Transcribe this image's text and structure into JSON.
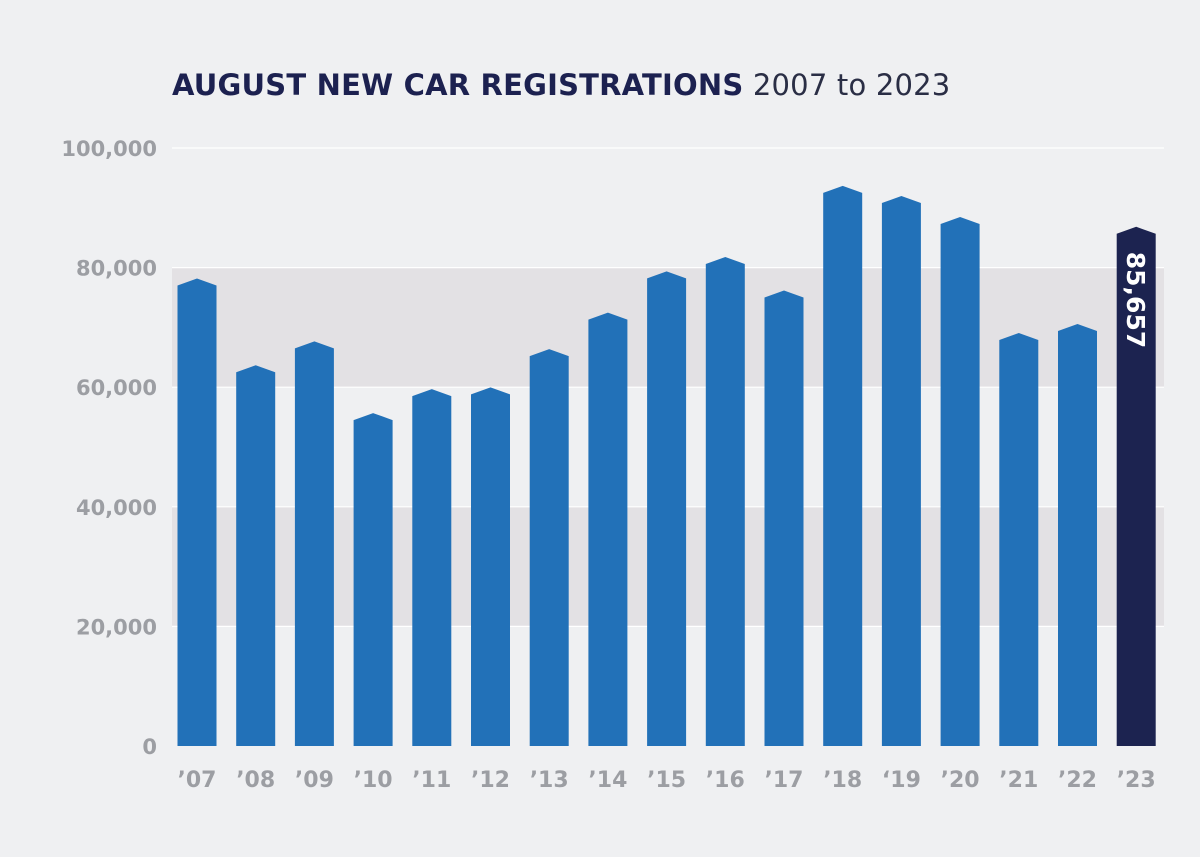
{
  "chart_data": {
    "type": "bar",
    "title": "AUGUST NEW CAR REGISTRATIONS",
    "subtitle": "2007 to 2023",
    "xlabel": "",
    "ylabel": "",
    "ylim": [
      0,
      100000
    ],
    "yticks": [
      0,
      20000,
      40000,
      60000,
      80000,
      100000
    ],
    "ytick_labels": [
      "0",
      "20,000",
      "40,000",
      "60,000",
      "80,000",
      "100,000"
    ],
    "categories": [
      "’07",
      "’08",
      "’09",
      "’10",
      "’11",
      "’12",
      "’13",
      "’14",
      "’15",
      "’16",
      "’17",
      "’18",
      "‘19",
      "’20",
      "’21",
      "’22",
      "’23"
    ],
    "values": [
      77000,
      62500,
      66500,
      54500,
      58500,
      58800,
      65200,
      71300,
      78200,
      80600,
      75000,
      92500,
      90800,
      87300,
      67900,
      69400,
      85657
    ],
    "highlight": {
      "index": 16,
      "label": "85,657",
      "color": "#1c2350"
    },
    "bar_color": "#2271b8",
    "grid": true,
    "band_color": "#e3e1e4",
    "legend": "none"
  }
}
